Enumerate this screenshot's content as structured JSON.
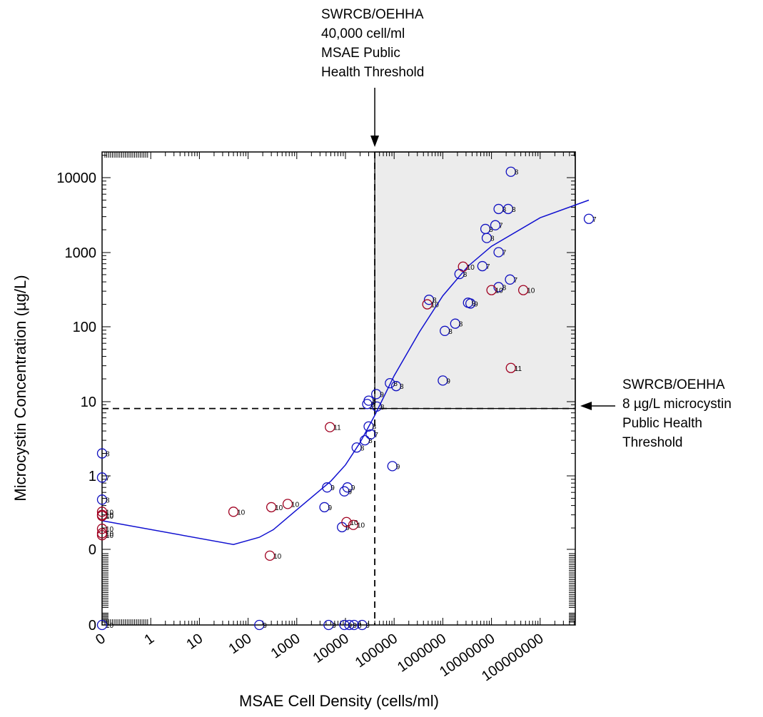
{
  "chart_data": {
    "type": "scatter",
    "title": "",
    "xlabel": "MSAE Cell Density (cells/ml)",
    "ylabel": "Microcystin Concentration (µg/L)",
    "x_scale": "log",
    "y_scale": "log",
    "x_tick_labels": [
      "0",
      "1",
      "10",
      "100",
      "1000",
      "10000",
      "100000",
      "1000000",
      "10000000",
      "100000000"
    ],
    "y_tick_labels": [
      "0",
      "0",
      "1",
      "10",
      "100",
      "1000",
      "10000"
    ],
    "x_thresh_annotation": [
      "SWRCB/OEHHA",
      "40,000 cell/ml",
      "MSAE Public",
      "Health Threshold"
    ],
    "y_thresh_annotation": [
      "SWRCB/OEHHA",
      "8 µg/L microcystin",
      "Public Health",
      "Threshold"
    ],
    "x_threshold": 40000,
    "y_threshold": 8,
    "colors": {
      "month_7_8_9": "#1010c0",
      "month_10_11": "#a00020",
      "fit": "#1010d0",
      "shade": "#ececec"
    },
    "series": [
      {
        "name": "",
        "color": "#1010c0",
        "points": [
          {
            "x": 0,
            "y": 2,
            "label": "8"
          },
          {
            "x": 0,
            "y": 0.95,
            "label": "7"
          },
          {
            "x": 0,
            "y": 0.48,
            "label": "8"
          },
          {
            "x": 0,
            "y": 0,
            "label": "10"
          },
          {
            "x": 170,
            "y": 0,
            "label": "9"
          },
          {
            "x": 4200,
            "y": 0.7,
            "label": "9"
          },
          {
            "x": 3700,
            "y": 0.38,
            "label": "9"
          },
          {
            "x": 11000,
            "y": 0.7,
            "label": "9"
          },
          {
            "x": 9500,
            "y": 0.62,
            "label": "9"
          },
          {
            "x": 8500,
            "y": 0.205,
            "label": "9"
          },
          {
            "x": 4500,
            "y": 0,
            "label": "9"
          },
          {
            "x": 9500,
            "y": 0,
            "label": "9"
          },
          {
            "x": 12000,
            "y": 0,
            "label": "9"
          },
          {
            "x": 15000,
            "y": 0,
            "label": "8"
          },
          {
            "x": 22000,
            "y": 0,
            "label": "9"
          },
          {
            "x": 17000,
            "y": 2.4,
            "label": "8"
          },
          {
            "x": 25000,
            "y": 3.0,
            "label": "8"
          },
          {
            "x": 33000,
            "y": 3.6,
            "label": "7"
          },
          {
            "x": 30000,
            "y": 4.6,
            "label": "8"
          },
          {
            "x": 44000,
            "y": 8.5,
            "label": "8"
          },
          {
            "x": 28000,
            "y": 9.2,
            "label": "8"
          },
          {
            "x": 30000,
            "y": 10.2,
            "label": "8"
          },
          {
            "x": 43000,
            "y": 12.5,
            "label": "9"
          },
          {
            "x": 82000,
            "y": 17.5,
            "label": "8"
          },
          {
            "x": 110000,
            "y": 16,
            "label": "8"
          },
          {
            "x": 92000,
            "y": 1.35,
            "label": "9"
          },
          {
            "x": 1000000,
            "y": 19,
            "label": "9"
          },
          {
            "x": 1100000,
            "y": 88,
            "label": "8"
          },
          {
            "x": 1800000,
            "y": 110,
            "label": "8"
          },
          {
            "x": 520000,
            "y": 230,
            "label": "8"
          },
          {
            "x": 3300000,
            "y": 210,
            "label": "9"
          },
          {
            "x": 3700000,
            "y": 205,
            "label": "9"
          },
          {
            "x": 2200000,
            "y": 510,
            "label": "8"
          },
          {
            "x": 6500000,
            "y": 650,
            "label": "7"
          },
          {
            "x": 14000000,
            "y": 340,
            "label": "8"
          },
          {
            "x": 24000000,
            "y": 430,
            "label": "7"
          },
          {
            "x": 14000000,
            "y": 1000,
            "label": "7"
          },
          {
            "x": 8000000,
            "y": 1550,
            "label": "8"
          },
          {
            "x": 7500000,
            "y": 2050,
            "label": "8"
          },
          {
            "x": 12000000,
            "y": 2300,
            "label": "7"
          },
          {
            "x": 14000000,
            "y": 3800,
            "label": "8"
          },
          {
            "x": 22000000,
            "y": 3800,
            "label": "8"
          },
          {
            "x": 25000000,
            "y": 12000,
            "label": "8"
          },
          {
            "x": 1000000000,
            "y": 2800,
            "label": "7"
          }
        ]
      },
      {
        "name": "",
        "color": "#a00020",
        "points": [
          {
            "x": 0,
            "y": 0.33,
            "label": "10"
          },
          {
            "x": 0,
            "y": 0.3,
            "label": "10"
          },
          {
            "x": 0,
            "y": 0.29,
            "label": "10"
          },
          {
            "x": 0,
            "y": 0.195,
            "label": "10"
          },
          {
            "x": 0,
            "y": 0.17,
            "label": "10"
          },
          {
            "x": 0,
            "y": 0.16,
            "label": "10"
          },
          {
            "x": 50,
            "y": 0.33,
            "label": "10"
          },
          {
            "x": 300,
            "y": 0.38,
            "label": "10"
          },
          {
            "x": 650,
            "y": 0.42,
            "label": "10"
          },
          {
            "x": 280,
            "y": 0.085,
            "label": "10"
          },
          {
            "x": 4800,
            "y": 4.5,
            "label": "11"
          },
          {
            "x": 10500,
            "y": 0.24,
            "label": "10"
          },
          {
            "x": 14500,
            "y": 0.22,
            "label": "10"
          },
          {
            "x": 480000,
            "y": 200,
            "label": "10"
          },
          {
            "x": 2600000,
            "y": 640,
            "label": "10"
          },
          {
            "x": 10000000,
            "y": 310,
            "label": "10"
          },
          {
            "x": 45000000,
            "y": 310,
            "label": "10"
          },
          {
            "x": 25000000,
            "y": 28,
            "label": "11"
          }
        ]
      }
    ],
    "fit_line": [
      {
        "x": 0,
        "y": 0.25
      },
      {
        "x": 50,
        "y": 0.12
      },
      {
        "x": 170,
        "y": 0.15
      },
      {
        "x": 330,
        "y": 0.19
      },
      {
        "x": 1000,
        "y": 0.35
      },
      {
        "x": 5000,
        "y": 0.85
      },
      {
        "x": 10000,
        "y": 1.4
      },
      {
        "x": 20000,
        "y": 2.8
      },
      {
        "x": 40000,
        "y": 6.5
      },
      {
        "x": 100000,
        "y": 22
      },
      {
        "x": 330000,
        "y": 85
      },
      {
        "x": 1000000,
        "y": 260
      },
      {
        "x": 3300000,
        "y": 650
      },
      {
        "x": 10000000,
        "y": 1200
      },
      {
        "x": 100000000,
        "y": 2900
      },
      {
        "x": 1000000000,
        "y": 5000
      }
    ]
  }
}
